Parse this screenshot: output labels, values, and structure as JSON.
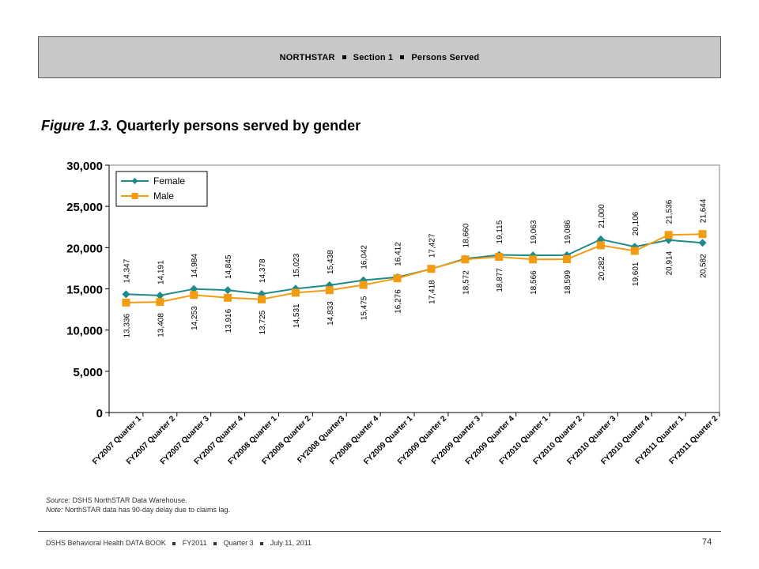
{
  "header": {
    "parts": [
      "NORTHSTAR",
      "Section 1",
      "Persons Served"
    ]
  },
  "figure": {
    "number": "Figure 1.3.",
    "title": "Quarterly persons served by gender"
  },
  "chart_data": {
    "type": "line",
    "title": "",
    "xlabel": "",
    "ylabel": "",
    "ylim": [
      0,
      30000
    ],
    "yticks": [
      "0",
      "5,000",
      "10,000",
      "15,000",
      "20,000",
      "25,000",
      "30,000"
    ],
    "ytick_values": [
      0,
      5000,
      10000,
      15000,
      20000,
      25000,
      30000
    ],
    "grid": false,
    "legend": "top-left",
    "categories": [
      "FY2007 Quarter 1",
      "FY2007 Quarter 2",
      "FY2007 Quarter 3",
      "FY2007 Quarter 4",
      "FY2008 Quarter 1",
      "FY2008 Quarter 2",
      "FY2008 Quarter3",
      "FY2008 Quarter 4",
      "FY2009 Quarter 1",
      "FY2009 Quarter 2",
      "FY2009 Quarter 3",
      "FY2009 Quarter 4",
      "FY2010 Quarter 1",
      "FY2010 Quarter 2",
      "FY2010 Quarter 3",
      "FY2010 Quarter 4",
      "FY2011 Quarter 1",
      "FY2011 Quarter 2"
    ],
    "series": [
      {
        "name": "Female",
        "color": "#1f8a8a",
        "marker": "diamond",
        "values": [
          14347,
          14191,
          14984,
          14845,
          14378,
          15023,
          15438,
          16042,
          16412,
          17418,
          18660,
          19115,
          19063,
          19086,
          21000,
          20106,
          20914,
          20582
        ],
        "labels": [
          "14,347",
          "14,191",
          "14,984",
          "14,845",
          "14,378",
          "15,023",
          "15,438",
          "16,042",
          "16,412",
          "17,418",
          "18,660",
          "19,115",
          "19,063",
          "19,086",
          "21,000",
          "20,106",
          "20,914",
          "20,582"
        ]
      },
      {
        "name": "Male",
        "color": "#f39c12",
        "marker": "square",
        "values": [
          13336,
          13408,
          14253,
          13916,
          13725,
          14531,
          14833,
          15475,
          16276,
          17427,
          18572,
          18877,
          18566,
          18599,
          20282,
          19601,
          21536,
          21644
        ],
        "labels": [
          "13,336",
          "13,408",
          "14,253",
          "13,916",
          "13,725",
          "14,531",
          "14,833",
          "15,475",
          "16,276",
          "17,427",
          "18,572",
          "18,877",
          "18,566",
          "18,599",
          "20,282",
          "19,601",
          "21,536",
          "21,644"
        ]
      }
    ]
  },
  "notes": {
    "source_label": "Source:",
    "source_text": " DSHS NorthSTAR Data Warehouse.",
    "note_label": "Note:",
    "note_text": " NorthSTAR data has 90-day delay due to claims lag."
  },
  "footer": {
    "parts": [
      "DSHS Behavioral Health DATA BOOK",
      "FY2011",
      "Quarter 3",
      "July 11, 2011"
    ],
    "page_number": "74"
  }
}
